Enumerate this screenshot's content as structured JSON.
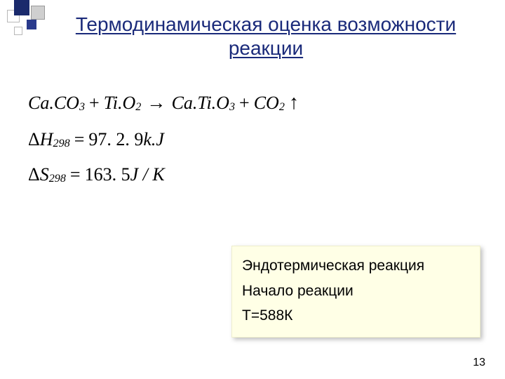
{
  "title": {
    "line": "Термодинамическая оценка возможности реакции",
    "color": "#1a2a7a",
    "fontsize": 28
  },
  "equations": {
    "reaction": {
      "lhs1": "Ca.CO",
      "lhs1_sub": "3",
      "plus1": "+",
      "lhs2": "Ti.O",
      "lhs2_sub": "2",
      "arrow": "→",
      "rhs1": "Ca.Ti.O",
      "rhs1_sub": "3",
      "plus2": "+",
      "rhs2": "CO",
      "rhs2_sub": "2",
      "gas_arrow": "↑"
    },
    "dH": {
      "delta": "Δ",
      "sym": "H",
      "sub": "298",
      "eq": "=",
      "val": "97. 2. 9",
      "unit": "k.J"
    },
    "dS": {
      "delta": "Δ",
      "sym": "S",
      "sub": "298",
      "eq": "=",
      "val": "163. 5",
      "unit": "J / K"
    },
    "fontsize": 26,
    "font": "Times New Roman italic"
  },
  "notes": {
    "line1": "Эндотермическая реакция",
    "line2": "Начало реакции",
    "line3": "T=588К",
    "background": "#ffffe6",
    "fontsize": 21
  },
  "page_number": "13",
  "colors": {
    "deco_blue": "#1a2a6c",
    "deco_gray_fill": "#cfcfcf",
    "deco_gray_border": "#b8b8b8"
  }
}
